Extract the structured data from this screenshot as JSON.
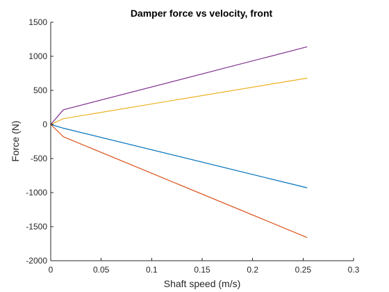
{
  "chart_data": {
    "type": "line",
    "title": "Damper force vs velocity, front",
    "xlabel": "Shaft speed (m/s)",
    "ylabel": "Force (N)",
    "xlim": [
      0,
      0.3
    ],
    "ylim": [
      -2000,
      1500
    ],
    "xticks": [
      0,
      0.05,
      0.1,
      0.15,
      0.2,
      0.25,
      0.3
    ],
    "xtick_labels": [
      "0",
      "0.05",
      "0.1",
      "0.15",
      "0.2",
      "0.25",
      "0.3"
    ],
    "yticks": [
      -2000,
      -1500,
      -1000,
      -500,
      0,
      500,
      1000,
      1500
    ],
    "ytick_labels": [
      "-2000",
      "-1500",
      "-1000",
      "-500",
      "0",
      "500",
      "1000",
      "1500"
    ],
    "grid": false,
    "legend": "none",
    "series": [
      {
        "color": "#0072BD",
        "x": [
          0,
          0.0125,
          0.254
        ],
        "y": [
          0,
          -55,
          -930
        ]
      },
      {
        "color": "#D95319",
        "x": [
          0,
          0.0125,
          0.254
        ],
        "y": [
          0,
          -180,
          -1660
        ]
      },
      {
        "color": "#EDB120",
        "x": [
          0,
          0.0125,
          0.254
        ],
        "y": [
          0,
          85,
          680
        ]
      },
      {
        "color": "#7E2F8E",
        "x": [
          0,
          0.0125,
          0.254
        ],
        "y": [
          0,
          215,
          1140
        ]
      }
    ]
  }
}
